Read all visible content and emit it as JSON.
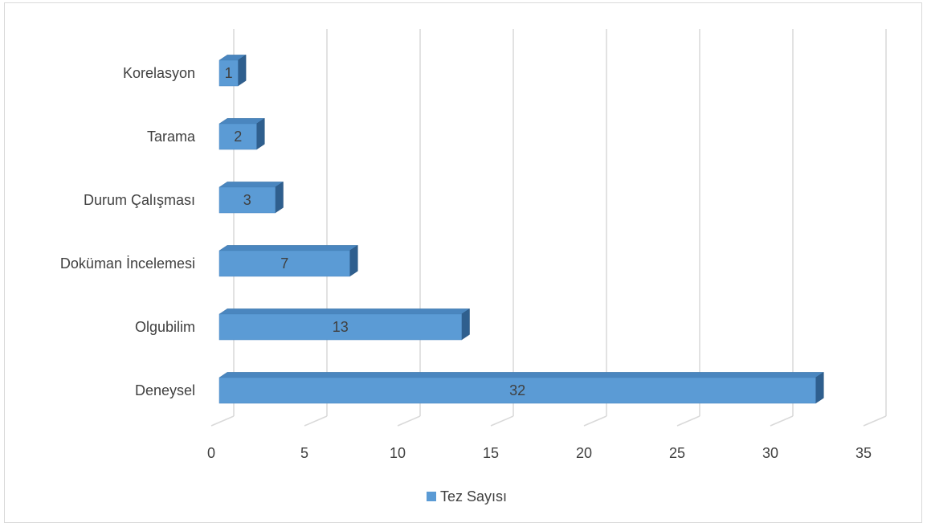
{
  "chart_data": {
    "type": "bar",
    "orientation": "horizontal",
    "style": "3d",
    "categories": [
      "Deneysel",
      "Olgubilim",
      "Doküman İncelemesi",
      "Durum Çalışması",
      "Tarama",
      "Korelasyon"
    ],
    "series": [
      {
        "name": "Tez Sayısı",
        "values": [
          32,
          13,
          7,
          3,
          2,
          1
        ],
        "color": "#5b9bd5"
      }
    ],
    "xlim": [
      0,
      35
    ],
    "xticks": [
      0,
      5,
      10,
      15,
      20,
      25,
      30,
      35
    ],
    "grid": true,
    "legend_position": "bottom",
    "colors": {
      "bar_front": "#5b9bd5",
      "bar_top": "#4a86bf",
      "bar_side": "#2f5f8e",
      "grid": "#d9d9d9",
      "text": "#404040"
    }
  }
}
